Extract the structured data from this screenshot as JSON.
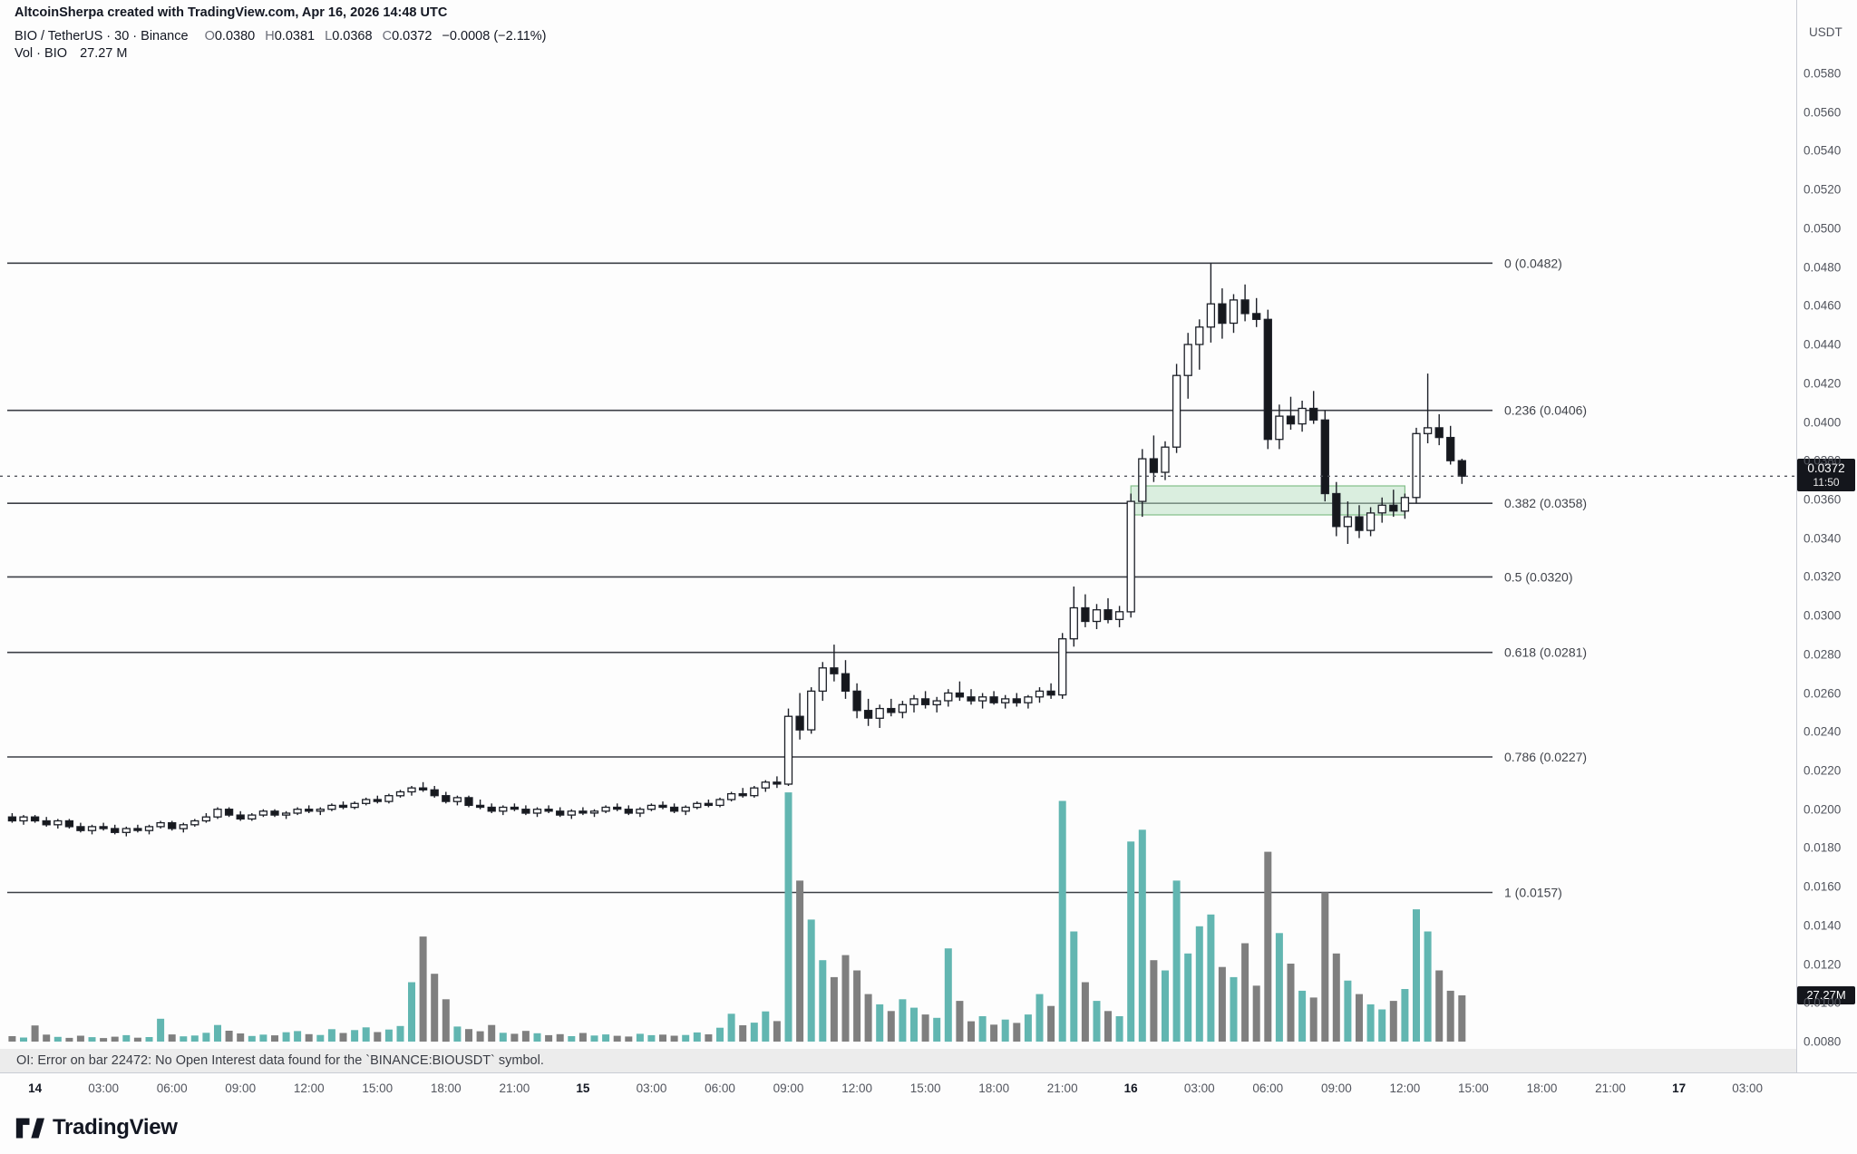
{
  "attribution": {
    "text": "AltcoinSherpa created with TradingView.com, Apr 16, 2026 14:48 UTC"
  },
  "legend": {
    "title": "BIO / TetherUS · 30 · Binance",
    "o_label": "O",
    "o": "0.0380",
    "h_label": "H",
    "h": "0.0381",
    "l_label": "L",
    "l": "0.0368",
    "c_label": "C",
    "c": "0.0372",
    "change": "−0.0008 (−2.11%)",
    "vol_title": "Vol · BIO",
    "vol_value": "27.27 M"
  },
  "price_axis": {
    "currency": "USDT",
    "ticks": [
      "0.0580",
      "0.0560",
      "0.0540",
      "0.0520",
      "0.0500",
      "0.0480",
      "0.0460",
      "0.0440",
      "0.0420",
      "0.0400",
      "0.0380",
      "0.0360",
      "0.0340",
      "0.0320",
      "0.0300",
      "0.0280",
      "0.0260",
      "0.0240",
      "0.0220",
      "0.0200",
      "0.0180",
      "0.0160",
      "0.0140",
      "0.0120",
      "0.0100",
      "0.0080"
    ],
    "last_price_label": {
      "price": "0.0372",
      "countdown": "11:50"
    },
    "volume_badge": "27.27M"
  },
  "time_axis": {
    "ticks": [
      {
        "label": "14",
        "major": true
      },
      {
        "label": "03:00",
        "major": false
      },
      {
        "label": "06:00",
        "major": false
      },
      {
        "label": "09:00",
        "major": false
      },
      {
        "label": "12:00",
        "major": false
      },
      {
        "label": "15:00",
        "major": false
      },
      {
        "label": "18:00",
        "major": false
      },
      {
        "label": "21:00",
        "major": false
      },
      {
        "label": "15",
        "major": true
      },
      {
        "label": "03:00",
        "major": false
      },
      {
        "label": "06:00",
        "major": false
      },
      {
        "label": "09:00",
        "major": false
      },
      {
        "label": "12:00",
        "major": false
      },
      {
        "label": "15:00",
        "major": false
      },
      {
        "label": "18:00",
        "major": false
      },
      {
        "label": "21:00",
        "major": false
      },
      {
        "label": "16",
        "major": true
      },
      {
        "label": "03:00",
        "major": false
      },
      {
        "label": "06:00",
        "major": false
      },
      {
        "label": "09:00",
        "major": false
      },
      {
        "label": "12:00",
        "major": false
      },
      {
        "label": "15:00",
        "major": false
      },
      {
        "label": "18:00",
        "major": false
      },
      {
        "label": "21:00",
        "major": false
      },
      {
        "label": "17",
        "major": true
      },
      {
        "label": "03:00",
        "major": false
      }
    ]
  },
  "status_bar": {
    "text": "OI: Error on bar 22472: No Open Interest data found for the `BINANCE:BIOUSDT` symbol."
  },
  "footer": {
    "logo_text": "TradingView"
  },
  "chart_data": {
    "type": "candlestick+volume",
    "symbol": "BINANCE:BIOUSDT",
    "interval_minutes": 30,
    "price_axis_range": [
      0.008,
      0.058
    ],
    "last_close": 0.0372,
    "last_volume_m": 27.27,
    "fib_levels": [
      {
        "label": "0 (0.0482)",
        "price": 0.0482
      },
      {
        "label": "0.236 (0.0406)",
        "price": 0.0406
      },
      {
        "label": "0.382 (0.0358)",
        "price": 0.0358
      },
      {
        "label": "0.5 (0.0320)",
        "price": 0.032
      },
      {
        "label": "0.618 (0.0281)",
        "price": 0.0281
      },
      {
        "label": "0.786 (0.0227)",
        "price": 0.0227
      },
      {
        "label": "1 (0.0157)",
        "price": 0.0157
      }
    ],
    "zone_box": {
      "start_index": 98,
      "end_index": 122,
      "price_top": 0.0367,
      "price_bottom": 0.0352,
      "fill": "#b8e0c2",
      "border": "#78b87e"
    },
    "colors": {
      "up_body": "#ffffff",
      "down_body": "#16181d",
      "border": "#1c1f27",
      "vol_up": "#62b6b1",
      "vol_down": "#7f7f7f"
    },
    "candles": [
      [
        0.0196,
        0.0198,
        0.0193,
        0.0194
      ],
      [
        0.0194,
        0.0197,
        0.0192,
        0.0196
      ],
      [
        0.0196,
        0.0197,
        0.0193,
        0.0194
      ],
      [
        0.0194,
        0.0196,
        0.0191,
        0.0192
      ],
      [
        0.0192,
        0.0195,
        0.019,
        0.0194
      ],
      [
        0.0194,
        0.0195,
        0.019,
        0.0191
      ],
      [
        0.0191,
        0.0193,
        0.0188,
        0.0189
      ],
      [
        0.0189,
        0.0192,
        0.0187,
        0.0191
      ],
      [
        0.0191,
        0.0193,
        0.0189,
        0.019
      ],
      [
        0.019,
        0.0192,
        0.0187,
        0.0188
      ],
      [
        0.0188,
        0.0191,
        0.0186,
        0.019
      ],
      [
        0.019,
        0.0192,
        0.0188,
        0.0189
      ],
      [
        0.0189,
        0.0192,
        0.0187,
        0.0191
      ],
      [
        0.0191,
        0.0194,
        0.019,
        0.0193
      ],
      [
        0.0193,
        0.0194,
        0.0189,
        0.019
      ],
      [
        0.019,
        0.0193,
        0.0188,
        0.0192
      ],
      [
        0.0192,
        0.0195,
        0.0191,
        0.0194
      ],
      [
        0.0194,
        0.0198,
        0.0193,
        0.0196
      ],
      [
        0.0196,
        0.0201,
        0.0195,
        0.02
      ],
      [
        0.02,
        0.0201,
        0.0196,
        0.0197
      ],
      [
        0.0197,
        0.0199,
        0.0194,
        0.0195
      ],
      [
        0.0195,
        0.0198,
        0.0194,
        0.0197
      ],
      [
        0.0197,
        0.02,
        0.0196,
        0.0199
      ],
      [
        0.0199,
        0.02,
        0.0196,
        0.0197
      ],
      [
        0.0197,
        0.0199,
        0.0195,
        0.0198
      ],
      [
        0.0198,
        0.0201,
        0.0197,
        0.02
      ],
      [
        0.02,
        0.0202,
        0.0198,
        0.0199
      ],
      [
        0.0199,
        0.0201,
        0.0197,
        0.02
      ],
      [
        0.02,
        0.0203,
        0.0199,
        0.0202
      ],
      [
        0.0202,
        0.0204,
        0.02,
        0.0201
      ],
      [
        0.0201,
        0.0204,
        0.02,
        0.0203
      ],
      [
        0.0203,
        0.0206,
        0.0202,
        0.0205
      ],
      [
        0.0205,
        0.0207,
        0.0203,
        0.0204
      ],
      [
        0.0204,
        0.0208,
        0.0203,
        0.0207
      ],
      [
        0.0207,
        0.021,
        0.0206,
        0.0209
      ],
      [
        0.0209,
        0.0212,
        0.0207,
        0.0211
      ],
      [
        0.0211,
        0.0214,
        0.0209,
        0.021
      ],
      [
        0.021,
        0.0212,
        0.0206,
        0.0207
      ],
      [
        0.0207,
        0.0209,
        0.0203,
        0.0204
      ],
      [
        0.0204,
        0.0207,
        0.0202,
        0.0206
      ],
      [
        0.0206,
        0.0207,
        0.0201,
        0.0202
      ],
      [
        0.0202,
        0.0205,
        0.02,
        0.0201
      ],
      [
        0.0201,
        0.0203,
        0.0198,
        0.0199
      ],
      [
        0.0199,
        0.0202,
        0.0197,
        0.0201
      ],
      [
        0.0201,
        0.0203,
        0.0199,
        0.02
      ],
      [
        0.02,
        0.0202,
        0.0197,
        0.0198
      ],
      [
        0.0198,
        0.0201,
        0.0196,
        0.02
      ],
      [
        0.02,
        0.0202,
        0.0198,
        0.0199
      ],
      [
        0.0199,
        0.0201,
        0.0196,
        0.0197
      ],
      [
        0.0197,
        0.02,
        0.0195,
        0.0199
      ],
      [
        0.0199,
        0.0201,
        0.0197,
        0.0198
      ],
      [
        0.0198,
        0.02,
        0.0196,
        0.0199
      ],
      [
        0.0199,
        0.0202,
        0.0198,
        0.0201
      ],
      [
        0.0201,
        0.0203,
        0.0199,
        0.02
      ],
      [
        0.02,
        0.0202,
        0.0197,
        0.0198
      ],
      [
        0.0198,
        0.0201,
        0.0196,
        0.02
      ],
      [
        0.02,
        0.0203,
        0.0199,
        0.0202
      ],
      [
        0.0202,
        0.0204,
        0.02,
        0.0201
      ],
      [
        0.0201,
        0.0203,
        0.0198,
        0.0199
      ],
      [
        0.0199,
        0.0202,
        0.0197,
        0.0201
      ],
      [
        0.0201,
        0.0204,
        0.02,
        0.0203
      ],
      [
        0.0203,
        0.0205,
        0.0201,
        0.0202
      ],
      [
        0.0202,
        0.0206,
        0.0201,
        0.0205
      ],
      [
        0.0205,
        0.0209,
        0.0204,
        0.0208
      ],
      [
        0.0208,
        0.0211,
        0.0206,
        0.0207
      ],
      [
        0.0207,
        0.0212,
        0.0206,
        0.0211
      ],
      [
        0.0211,
        0.0215,
        0.0209,
        0.0214
      ],
      [
        0.0214,
        0.0217,
        0.0211,
        0.0213
      ],
      [
        0.0213,
        0.0252,
        0.0212,
        0.0248
      ],
      [
        0.0248,
        0.026,
        0.0236,
        0.0241
      ],
      [
        0.0241,
        0.0263,
        0.0239,
        0.0261
      ],
      [
        0.0261,
        0.0276,
        0.0256,
        0.0273
      ],
      [
        0.0273,
        0.0285,
        0.0266,
        0.027
      ],
      [
        0.027,
        0.0277,
        0.0257,
        0.0261
      ],
      [
        0.0261,
        0.0265,
        0.0247,
        0.0251
      ],
      [
        0.0251,
        0.0257,
        0.0243,
        0.0247
      ],
      [
        0.0247,
        0.0254,
        0.0242,
        0.0252
      ],
      [
        0.0252,
        0.0257,
        0.0248,
        0.025
      ],
      [
        0.025,
        0.0256,
        0.0247,
        0.0254
      ],
      [
        0.0254,
        0.0259,
        0.025,
        0.0257
      ],
      [
        0.0257,
        0.0261,
        0.0252,
        0.0254
      ],
      [
        0.0254,
        0.0258,
        0.025,
        0.0256
      ],
      [
        0.0256,
        0.0262,
        0.0253,
        0.026
      ],
      [
        0.026,
        0.0266,
        0.0256,
        0.0258
      ],
      [
        0.0258,
        0.0262,
        0.0254,
        0.0256
      ],
      [
        0.0256,
        0.026,
        0.0252,
        0.0258
      ],
      [
        0.0258,
        0.0261,
        0.0254,
        0.0255
      ],
      [
        0.0255,
        0.0259,
        0.0252,
        0.0257
      ],
      [
        0.0257,
        0.026,
        0.0253,
        0.0255
      ],
      [
        0.0255,
        0.0259,
        0.0252,
        0.0258
      ],
      [
        0.0258,
        0.0263,
        0.0255,
        0.0261
      ],
      [
        0.0261,
        0.0265,
        0.0257,
        0.0259
      ],
      [
        0.0259,
        0.0291,
        0.0257,
        0.0288
      ],
      [
        0.0288,
        0.0315,
        0.0284,
        0.0304
      ],
      [
        0.0304,
        0.0311,
        0.0294,
        0.0297
      ],
      [
        0.0297,
        0.0306,
        0.0293,
        0.0303
      ],
      [
        0.0303,
        0.0309,
        0.0296,
        0.0298
      ],
      [
        0.0298,
        0.0305,
        0.0294,
        0.0302
      ],
      [
        0.0302,
        0.0363,
        0.0299,
        0.0359
      ],
      [
        0.0359,
        0.0386,
        0.0351,
        0.0381
      ],
      [
        0.0381,
        0.0393,
        0.0369,
        0.0374
      ],
      [
        0.0374,
        0.039,
        0.037,
        0.0387
      ],
      [
        0.0387,
        0.043,
        0.0384,
        0.0424
      ],
      [
        0.0424,
        0.0446,
        0.0412,
        0.044
      ],
      [
        0.044,
        0.0453,
        0.0427,
        0.0449
      ],
      [
        0.0449,
        0.0482,
        0.0441,
        0.0461
      ],
      [
        0.0461,
        0.0469,
        0.0443,
        0.0451
      ],
      [
        0.0451,
        0.0466,
        0.0446,
        0.0463
      ],
      [
        0.0463,
        0.0471,
        0.0452,
        0.0456
      ],
      [
        0.0456,
        0.0464,
        0.0449,
        0.0453
      ],
      [
        0.0453,
        0.0458,
        0.0386,
        0.0391
      ],
      [
        0.0391,
        0.0409,
        0.0386,
        0.0403
      ],
      [
        0.0403,
        0.0413,
        0.0396,
        0.0399
      ],
      [
        0.0399,
        0.0411,
        0.0395,
        0.0407
      ],
      [
        0.0407,
        0.0416,
        0.0399,
        0.0401
      ],
      [
        0.0401,
        0.0406,
        0.0359,
        0.0363
      ],
      [
        0.0363,
        0.0369,
        0.0341,
        0.0346
      ],
      [
        0.0346,
        0.0359,
        0.0337,
        0.0351
      ],
      [
        0.0351,
        0.0357,
        0.034,
        0.0344
      ],
      [
        0.0344,
        0.0356,
        0.0341,
        0.0353
      ],
      [
        0.0353,
        0.0361,
        0.0348,
        0.0357
      ],
      [
        0.0357,
        0.0365,
        0.0351,
        0.0354
      ],
      [
        0.0354,
        0.0363,
        0.035,
        0.0361
      ],
      [
        0.0361,
        0.0397,
        0.0358,
        0.0394
      ],
      [
        0.0394,
        0.0425,
        0.0389,
        0.0397
      ],
      [
        0.0397,
        0.0404,
        0.0388,
        0.0392
      ],
      [
        0.0392,
        0.0398,
        0.0378,
        0.038
      ],
      [
        0.038,
        0.0381,
        0.0368,
        0.0372
      ]
    ],
    "volumes_m": [
      3.2,
      2.4,
      9.5,
      4.1,
      2.8,
      2.2,
      3.5,
      2.6,
      2.1,
      2.9,
      3.8,
      2.3,
      2.7,
      13.5,
      4.2,
      3.1,
      3.6,
      5.2,
      9.8,
      6.4,
      4.8,
      3.3,
      4.1,
      3.7,
      5.5,
      6.2,
      4.4,
      3.9,
      7.3,
      5.1,
      6.8,
      8.4,
      5.6,
      7.1,
      9.2,
      35,
      62,
      40,
      25,
      8.9,
      7.4,
      6.1,
      9.8,
      5.2,
      4.6,
      6.3,
      4.9,
      3.8,
      4.4,
      3.2,
      5.1,
      3.6,
      4.2,
      3.4,
      3.0,
      4.6,
      3.8,
      4.1,
      3.5,
      3.9,
      5.4,
      4.3,
      8.2,
      16.4,
      9.6,
      11.2,
      17.8,
      12.1,
      147,
      95,
      72,
      48,
      38,
      51,
      42,
      28,
      22,
      18,
      25,
      20,
      16,
      14,
      55,
      24,
      12,
      15,
      10,
      13,
      11,
      16,
      28,
      21,
      142,
      65,
      35,
      24,
      18,
      15,
      118,
      125,
      48,
      42,
      95,
      52,
      68,
      75,
      44,
      38,
      58,
      33,
      112,
      64,
      46,
      30,
      26,
      88,
      52,
      36,
      28,
      22,
      19,
      24,
      31,
      78,
      65,
      42,
      30,
      27.27
    ]
  }
}
